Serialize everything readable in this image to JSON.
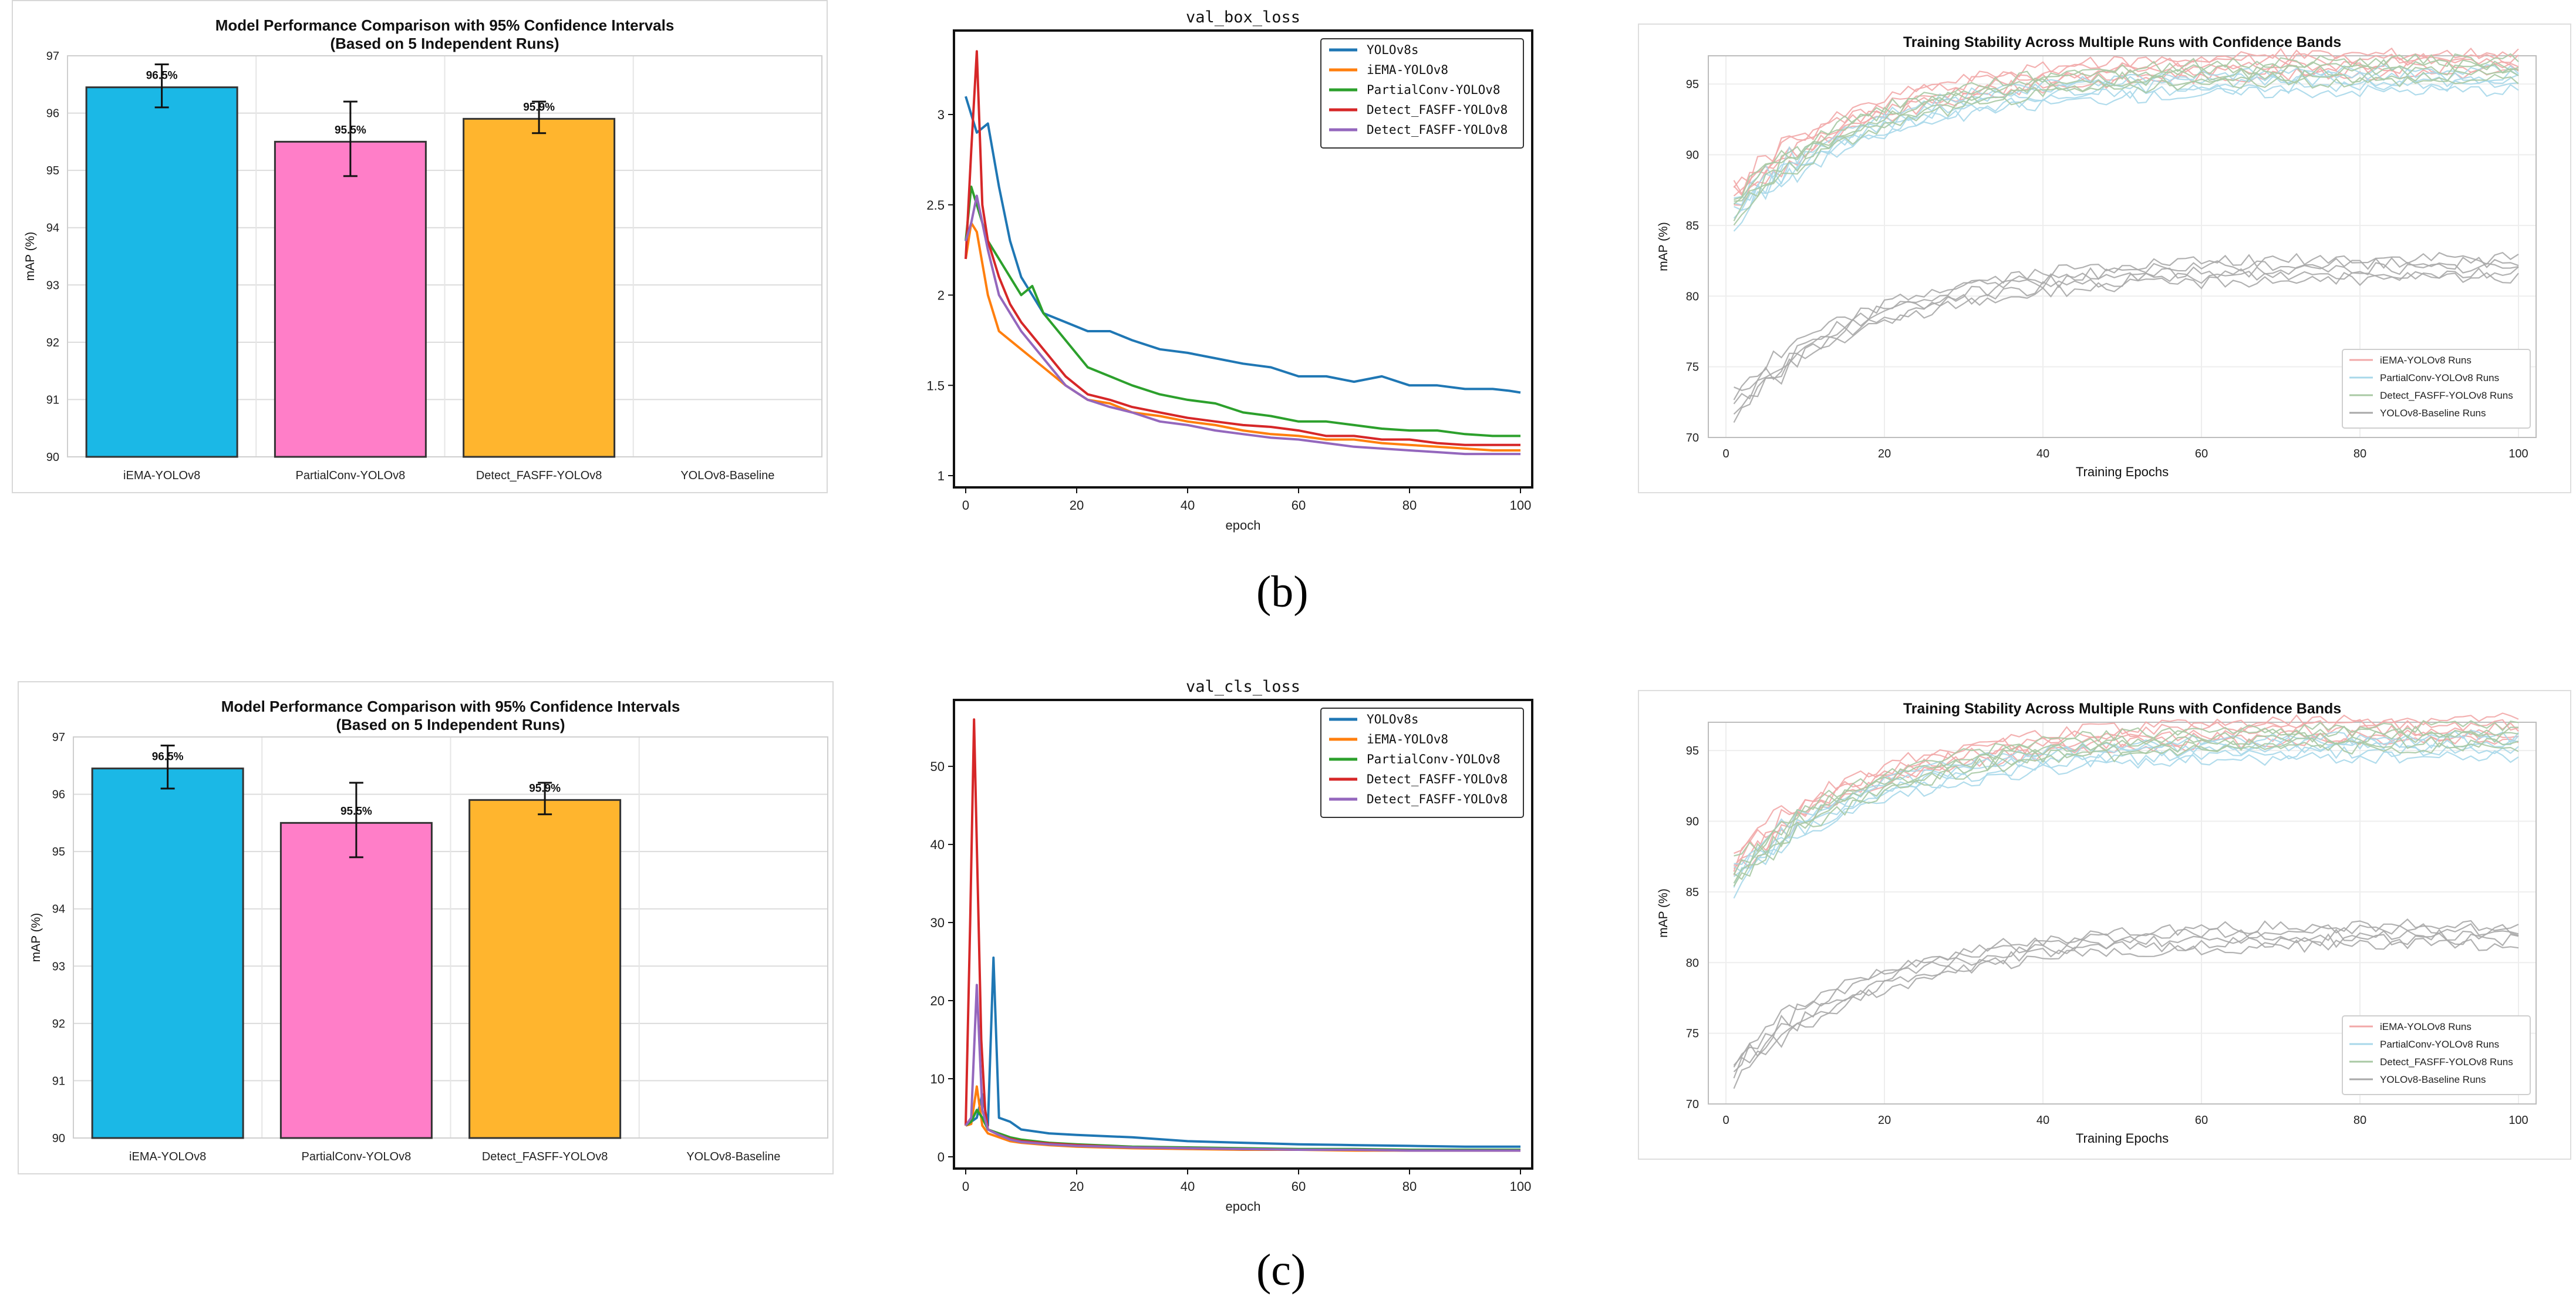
{
  "captions": [
    "(b)",
    "(c)"
  ],
  "chart_data": [
    {
      "id": "bar1",
      "type": "bar",
      "title": "Model Performance Comparison with 95% Confidence Intervals",
      "subtitle": "(Based on 5 Independent Runs)",
      "xlabel": "",
      "ylabel": "mAP (%)",
      "ylim": [
        90,
        97
      ],
      "yticks": [
        90,
        91,
        92,
        93,
        94,
        95,
        96,
        97
      ],
      "categories": [
        "iEMA-YOLOv8",
        "PartialConv-YOLOv8",
        "Detect_FASFF-YOLOv8",
        "YOLOv8-Baseline"
      ],
      "values": [
        96.45,
        95.5,
        95.9,
        null
      ],
      "ci_low": [
        96.1,
        94.9,
        95.65,
        null
      ],
      "ci_high": [
        96.85,
        96.2,
        96.2,
        null
      ],
      "value_labels": [
        "96.5%",
        "95.5%",
        "95.9%",
        ""
      ],
      "colors": [
        "#1bb8e6",
        "#ff7ec8",
        "#ffb52e",
        "#cccccc"
      ],
      "grid": true
    },
    {
      "id": "line1",
      "type": "line",
      "title": "val_box_loss",
      "xlabel": "epoch",
      "ylabel": "",
      "xlim": [
        0,
        100
      ],
      "ylim": [
        1.0,
        3.4
      ],
      "xticks": [
        0,
        20,
        40,
        60,
        80,
        100
      ],
      "yticks": [
        1.0,
        1.5,
        2.0,
        2.5,
        3.0
      ],
      "legend_position": "top-right",
      "series": [
        {
          "name": "YOLOv8s",
          "color": "#1f77b4",
          "x": [
            0,
            2,
            4,
            6,
            8,
            10,
            14,
            18,
            22,
            26,
            30,
            35,
            40,
            45,
            50,
            55,
            60,
            65,
            70,
            75,
            80,
            85,
            90,
            95,
            98,
            100
          ],
          "values": [
            3.1,
            2.9,
            2.95,
            2.6,
            2.3,
            2.1,
            1.9,
            1.85,
            1.8,
            1.8,
            1.75,
            1.7,
            1.68,
            1.65,
            1.62,
            1.6,
            1.55,
            1.55,
            1.52,
            1.55,
            1.5,
            1.5,
            1.48,
            1.48,
            1.47,
            1.46
          ]
        },
        {
          "name": "iEMA-YOLOv8",
          "color": "#ff7f0e",
          "x": [
            0,
            1,
            2,
            4,
            6,
            8,
            10,
            14,
            18,
            22,
            26,
            30,
            35,
            40,
            45,
            50,
            55,
            60,
            65,
            70,
            75,
            80,
            85,
            90,
            95,
            100
          ],
          "values": [
            2.2,
            2.4,
            2.35,
            2.0,
            1.8,
            1.75,
            1.7,
            1.6,
            1.5,
            1.42,
            1.4,
            1.35,
            1.33,
            1.3,
            1.28,
            1.25,
            1.23,
            1.22,
            1.2,
            1.2,
            1.18,
            1.17,
            1.16,
            1.15,
            1.14,
            1.14
          ]
        },
        {
          "name": "PartialConv-YOLOv8",
          "color": "#2ca02c",
          "x": [
            0,
            1,
            2,
            4,
            6,
            8,
            10,
            12,
            14,
            18,
            22,
            26,
            30,
            35,
            40,
            45,
            50,
            55,
            60,
            65,
            70,
            75,
            80,
            85,
            90,
            95,
            100
          ],
          "values": [
            2.3,
            2.6,
            2.5,
            2.3,
            2.2,
            2.1,
            2.0,
            2.05,
            1.9,
            1.75,
            1.6,
            1.55,
            1.5,
            1.45,
            1.42,
            1.4,
            1.35,
            1.33,
            1.3,
            1.3,
            1.28,
            1.26,
            1.25,
            1.25,
            1.23,
            1.22,
            1.22
          ]
        },
        {
          "name": "Detect_FASFF-YOLOv8",
          "color": "#d62728",
          "x": [
            0,
            1,
            2,
            3,
            4,
            6,
            8,
            10,
            14,
            18,
            22,
            26,
            30,
            35,
            40,
            45,
            50,
            55,
            60,
            65,
            70,
            75,
            80,
            85,
            90,
            95,
            100
          ],
          "values": [
            2.2,
            2.8,
            3.35,
            2.5,
            2.3,
            2.1,
            1.95,
            1.85,
            1.7,
            1.55,
            1.45,
            1.42,
            1.38,
            1.35,
            1.32,
            1.3,
            1.28,
            1.27,
            1.25,
            1.22,
            1.22,
            1.2,
            1.2,
            1.18,
            1.17,
            1.17,
            1.17
          ]
        },
        {
          "name": "Detect_FASFF-YOLOv8",
          "color": "#9467bd",
          "x": [
            0,
            1,
            2,
            3,
            4,
            6,
            8,
            10,
            14,
            18,
            22,
            26,
            30,
            35,
            40,
            45,
            50,
            55,
            60,
            65,
            70,
            75,
            80,
            85,
            90,
            95,
            100
          ],
          "values": [
            2.3,
            2.4,
            2.55,
            2.4,
            2.25,
            2.0,
            1.9,
            1.8,
            1.65,
            1.5,
            1.42,
            1.38,
            1.35,
            1.3,
            1.28,
            1.25,
            1.23,
            1.21,
            1.2,
            1.18,
            1.16,
            1.15,
            1.14,
            1.13,
            1.12,
            1.12,
            1.12
          ]
        }
      ]
    },
    {
      "id": "stab1",
      "type": "line",
      "title": "Training Stability Across Multiple Runs with Confidence Bands",
      "xlabel": "Training Epochs",
      "ylabel": "mAP (%)",
      "xlim": [
        0,
        100
      ],
      "ylim": [
        70,
        97
      ],
      "xticks": [
        0,
        20,
        40,
        60,
        80,
        100
      ],
      "yticks": [
        70,
        75,
        80,
        85,
        90,
        95
      ],
      "legend_position": "bottom-right",
      "series": [
        {
          "name": "iEMA-YOLOv8 Runs",
          "color": "#f2a8a8",
          "start": 86.5,
          "end": 96.5
        },
        {
          "name": "PartialConv-YOLOv8 Runs",
          "color": "#a8d8ea",
          "start": 85.5,
          "end": 95.3
        },
        {
          "name": "Detect_FASFF-YOLOv8 Runs",
          "color": "#a9c9a4",
          "start": 85.8,
          "end": 96.0
        },
        {
          "name": "YOLOv8-Baseline Runs",
          "color": "#a8a8a8",
          "start": 72.0,
          "end": 82.0
        }
      ]
    },
    {
      "id": "bar2",
      "type": "bar",
      "title": "Model Performance Comparison with 95% Confidence Intervals",
      "subtitle": "(Based on 5 Independent Runs)",
      "xlabel": "",
      "ylabel": "mAP (%)",
      "ylim": [
        90,
        97
      ],
      "yticks": [
        90,
        91,
        92,
        93,
        94,
        95,
        96,
        97
      ],
      "categories": [
        "iEMA-YOLOv8",
        "PartialConv-YOLOv8",
        "Detect_FASFF-YOLOv8",
        "YOLOv8-Baseline"
      ],
      "values": [
        96.45,
        95.5,
        95.9,
        null
      ],
      "ci_low": [
        96.1,
        94.9,
        95.65,
        null
      ],
      "ci_high": [
        96.85,
        96.2,
        96.2,
        null
      ],
      "value_labels": [
        "96.5%",
        "95.5%",
        "95.9%",
        ""
      ],
      "colors": [
        "#1bb8e6",
        "#ff7ec8",
        "#ffb52e",
        "#cccccc"
      ],
      "grid": true
    },
    {
      "id": "line2",
      "type": "line",
      "title": "val_cls_loss",
      "xlabel": "epoch",
      "ylabel": "",
      "xlim": [
        0,
        100
      ],
      "ylim": [
        0,
        57
      ],
      "xticks": [
        0,
        20,
        40,
        60,
        80,
        100
      ],
      "yticks": [
        0,
        10,
        20,
        30,
        40,
        50
      ],
      "legend_position": "top-right",
      "series": [
        {
          "name": "YOLOv8s",
          "color": "#1f77b4",
          "x": [
            0,
            1,
            2,
            3,
            4,
            5,
            6,
            8,
            10,
            15,
            20,
            30,
            40,
            50,
            60,
            70,
            80,
            90,
            100
          ],
          "values": [
            4,
            4.5,
            5,
            8,
            4,
            25.5,
            5,
            4.5,
            3.5,
            3,
            2.8,
            2.5,
            2,
            1.8,
            1.6,
            1.5,
            1.4,
            1.3,
            1.3
          ]
        },
        {
          "name": "iEMA-YOLOv8",
          "color": "#ff7f0e",
          "x": [
            0,
            1,
            2,
            3,
            4,
            6,
            8,
            10,
            15,
            20,
            30,
            40,
            50,
            60,
            70,
            80,
            90,
            100
          ],
          "values": [
            4,
            4.2,
            9,
            4,
            3,
            2.5,
            2,
            1.8,
            1.5,
            1.3,
            1.1,
            1.0,
            0.9,
            0.9,
            0.8,
            0.8,
            0.8,
            0.8
          ]
        },
        {
          "name": "PartialConv-YOLOv8",
          "color": "#2ca02c",
          "x": [
            0,
            1,
            2,
            3,
            4,
            6,
            8,
            10,
            15,
            20,
            30,
            40,
            50,
            60,
            70,
            80,
            90,
            100
          ],
          "values": [
            4,
            4.5,
            6,
            5,
            3.5,
            3,
            2.5,
            2.2,
            1.8,
            1.6,
            1.3,
            1.2,
            1.1,
            1.0,
            1.0,
            0.9,
            0.9,
            0.9
          ]
        },
        {
          "name": "Detect_FASFF-YOLOv8",
          "color": "#d62728",
          "x": [
            0,
            0.8,
            1.5,
            2,
            2.8,
            3.5,
            4,
            6,
            8,
            10,
            15,
            20,
            30,
            40,
            50,
            60,
            70,
            80,
            90,
            100
          ],
          "values": [
            4,
            30,
            56,
            40,
            15,
            6,
            3.5,
            2.8,
            2.3,
            2,
            1.7,
            1.5,
            1.2,
            1.1,
            1.0,
            0.9,
            0.9,
            0.8,
            0.8,
            0.8
          ]
        },
        {
          "name": "Detect_FASFF-YOLOv8",
          "color": "#9467bd",
          "x": [
            0,
            1,
            2,
            3,
            4,
            6,
            8,
            10,
            15,
            20,
            30,
            40,
            50,
            60,
            70,
            80,
            90,
            100
          ],
          "values": [
            4,
            5,
            22,
            6,
            3.5,
            2.8,
            2.2,
            1.9,
            1.6,
            1.4,
            1.2,
            1.1,
            1.0,
            0.9,
            0.9,
            0.8,
            0.8,
            0.8
          ]
        }
      ]
    },
    {
      "id": "stab2",
      "type": "line",
      "title": "Training Stability Across Multiple Runs with Confidence Bands",
      "xlabel": "Training Epochs",
      "ylabel": "mAP (%)",
      "xlim": [
        0,
        100
      ],
      "ylim": [
        70,
        97
      ],
      "xticks": [
        0,
        20,
        40,
        60,
        80,
        100
      ],
      "yticks": [
        70,
        75,
        80,
        85,
        90,
        95
      ],
      "legend_position": "bottom-right",
      "series": [
        {
          "name": "iEMA-YOLOv8 Runs",
          "color": "#f2a8a8",
          "start": 86.5,
          "end": 96.5
        },
        {
          "name": "PartialConv-YOLOv8 Runs",
          "color": "#a8d8ea",
          "start": 85.5,
          "end": 95.3
        },
        {
          "name": "Detect_FASFF-YOLOv8 Runs",
          "color": "#a9c9a4",
          "start": 85.8,
          "end": 96.0
        },
        {
          "name": "YOLOv8-Baseline Runs",
          "color": "#a8a8a8",
          "start": 72.0,
          "end": 82.0
        }
      ]
    }
  ]
}
